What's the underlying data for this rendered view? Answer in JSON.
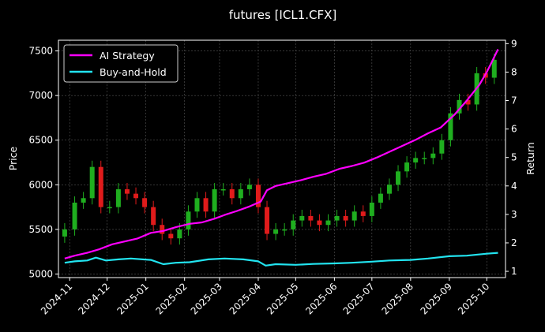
{
  "chart_data": {
    "type": "line",
    "title": "futures [ICL1.CFX]",
    "ylabel": "Price",
    "y2label": "Return",
    "ylim": [
      4960,
      7620
    ],
    "y2lim": [
      0.78,
      9.12
    ],
    "y_ticks": [
      5000,
      5500,
      6000,
      6500,
      7000,
      7500
    ],
    "y2_ticks": [
      1,
      2,
      3,
      4,
      5,
      6,
      7,
      8,
      9
    ],
    "x_ticks": [
      "2024-11",
      "2024-12",
      "2025-01",
      "2025-02",
      "2025-03",
      "2025-04",
      "2025-05",
      "2025-06",
      "2025-07",
      "2025-08",
      "2025-09",
      "2025-10"
    ],
    "grid": true,
    "legend_position": "top-left",
    "colors": {
      "strategy": "#ff00ff",
      "buyhold": "#22e4f0",
      "up": "#1fae1f",
      "down": "#e01b1b",
      "grid": "#555555",
      "axes": "#ffffff"
    },
    "series": [
      {
        "name": "AI Strategy",
        "axis": "right",
        "x": [
          "2024-10-28",
          "2024-11-05",
          "2024-11-15",
          "2024-11-25",
          "2024-12-05",
          "2024-12-15",
          "2024-12-25",
          "2025-01-05",
          "2025-01-15",
          "2025-01-25",
          "2025-02-05",
          "2025-02-15",
          "2025-02-25",
          "2025-03-05",
          "2025-03-15",
          "2025-03-25",
          "2025-04-03",
          "2025-04-08",
          "2025-04-15",
          "2025-04-25",
          "2025-05-05",
          "2025-05-15",
          "2025-05-25",
          "2025-06-05",
          "2025-06-15",
          "2025-06-25",
          "2025-07-05",
          "2025-07-15",
          "2025-07-25",
          "2025-08-05",
          "2025-08-15",
          "2025-08-25",
          "2025-09-05",
          "2025-09-15",
          "2025-09-25",
          "2025-10-01",
          "2025-10-05",
          "2025-10-10"
        ],
        "values": [
          1.45,
          1.55,
          1.65,
          1.78,
          1.95,
          2.05,
          2.15,
          2.35,
          2.42,
          2.55,
          2.67,
          2.72,
          2.85,
          2.98,
          3.12,
          3.28,
          3.45,
          3.85,
          4.0,
          4.1,
          4.2,
          4.32,
          4.42,
          4.6,
          4.7,
          4.82,
          5.0,
          5.2,
          5.4,
          5.62,
          5.85,
          6.05,
          6.5,
          7.0,
          7.55,
          8.0,
          8.35,
          8.8
        ]
      },
      {
        "name": "Buy-and-Hold",
        "axis": "right",
        "x": [
          "2024-10-28",
          "2024-11-05",
          "2024-11-15",
          "2024-11-22",
          "2024-11-30",
          "2024-12-10",
          "2024-12-20",
          "2025-01-05",
          "2025-01-15",
          "2025-01-25",
          "2025-02-05",
          "2025-02-20",
          "2025-03-05",
          "2025-03-20",
          "2025-04-01",
          "2025-04-07",
          "2025-04-15",
          "2025-05-01",
          "2025-05-15",
          "2025-06-01",
          "2025-06-15",
          "2025-07-01",
          "2025-07-15",
          "2025-08-01",
          "2025-08-15",
          "2025-09-01",
          "2025-09-15",
          "2025-10-01",
          "2025-10-10"
        ],
        "values": [
          1.3,
          1.35,
          1.38,
          1.48,
          1.38,
          1.42,
          1.45,
          1.4,
          1.25,
          1.3,
          1.32,
          1.42,
          1.45,
          1.42,
          1.35,
          1.2,
          1.25,
          1.23,
          1.26,
          1.28,
          1.3,
          1.34,
          1.38,
          1.4,
          1.45,
          1.53,
          1.55,
          1.62,
          1.65
        ]
      }
    ],
    "candles": {
      "axis": "left",
      "x": [
        "2024-10-28",
        "2024-11-05",
        "2024-11-12",
        "2024-11-19",
        "2024-11-26",
        "2024-12-03",
        "2024-12-10",
        "2024-12-17",
        "2024-12-24",
        "2024-12-31",
        "2025-01-07",
        "2025-01-14",
        "2025-01-21",
        "2025-01-28",
        "2025-02-04",
        "2025-02-11",
        "2025-02-18",
        "2025-02-25",
        "2025-03-04",
        "2025-03-11",
        "2025-03-18",
        "2025-03-25",
        "2025-04-01",
        "2025-04-08",
        "2025-04-15",
        "2025-04-22",
        "2025-04-29",
        "2025-05-06",
        "2025-05-13",
        "2025-05-20",
        "2025-05-27",
        "2025-06-03",
        "2025-06-10",
        "2025-06-17",
        "2025-06-24",
        "2025-07-01",
        "2025-07-08",
        "2025-07-15",
        "2025-07-22",
        "2025-07-29",
        "2025-08-05",
        "2025-08-12",
        "2025-08-19",
        "2025-08-26",
        "2025-09-02",
        "2025-09-09",
        "2025-09-16",
        "2025-09-23",
        "2025-09-30",
        "2025-10-07"
      ],
      "close": [
        5500,
        5800,
        5850,
        6200,
        5750,
        5750,
        5950,
        5900,
        5850,
        5750,
        5550,
        5450,
        5400,
        5500,
        5700,
        5850,
        5700,
        5950,
        5950,
        5850,
        5950,
        6000,
        5750,
        5450,
        5500,
        5500,
        5600,
        5650,
        5600,
        5550,
        5600,
        5650,
        5600,
        5700,
        5650,
        5800,
        5900,
        6000,
        6150,
        6250,
        6300,
        6300,
        6350,
        6500,
        6800,
        6950,
        6900,
        7250,
        7200,
        7400
      ]
    }
  }
}
